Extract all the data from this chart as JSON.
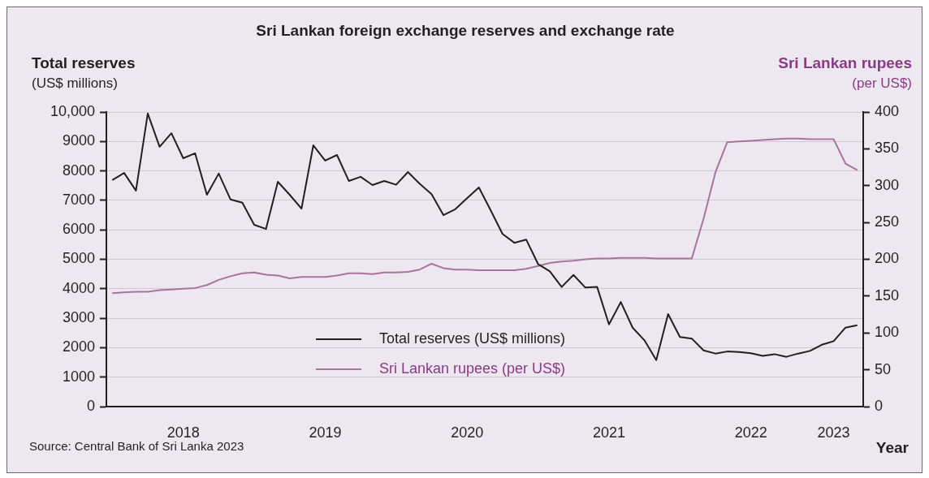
{
  "chart_data": {
    "type": "line",
    "title": "Sri Lankan foreign exchange reserves and exchange rate",
    "xlabel": "Year",
    "ylabel": "Total reserves\n(US$ millions)",
    "y2label": "Sri Lankan rupees\n(per US$)",
    "annotations": [
      "Source: Central Bank of Sri Lanka 2023"
    ],
    "categories": [
      null,
      null,
      null,
      null,
      null,
      null,
      "2018",
      null,
      null,
      null,
      null,
      null,
      null,
      null,
      null,
      null,
      null,
      null,
      "2019",
      null,
      null,
      null,
      null,
      null,
      null,
      null,
      null,
      null,
      null,
      null,
      "2020",
      null,
      null,
      null,
      null,
      null,
      null,
      null,
      null,
      null,
      null,
      null,
      "2021",
      null,
      null,
      null,
      null,
      null,
      null,
      null,
      null,
      null,
      null,
      null,
      "2022",
      null,
      null,
      null,
      null,
      null,
      null,
      "2023",
      null,
      null
    ],
    "series": [
      {
        "name": "Total reserves (US$ millions)",
        "color": "#231f20",
        "values": [
          7690,
          7930,
          7330,
          9950,
          8820,
          9280,
          8430,
          8600,
          7190,
          7910,
          7030,
          6920,
          6170,
          6030,
          7630,
          7190,
          6720,
          8870,
          8350,
          8540,
          7660,
          7800,
          7520,
          7660,
          7530,
          7960,
          7560,
          7210,
          6500,
          6700,
          7070,
          7440,
          6660,
          5860,
          5560,
          5670,
          4840,
          4590,
          4060,
          4470,
          4040,
          4060,
          2790,
          3550,
          2680,
          2250,
          1580,
          3140,
          2360,
          2310,
          1910,
          1800,
          1870,
          1850,
          1810,
          1720,
          1780,
          1690,
          1800,
          1890,
          2100,
          2220,
          2680,
          2760
        ]
      },
      {
        "name": "Sri Lankan rupees (per US$)",
        "color": "#a9739f",
        "axis": "y2",
        "values": [
          154,
          155,
          156,
          156,
          158,
          159,
          160,
          161,
          165,
          172,
          177,
          181,
          182,
          179,
          178,
          174,
          176,
          176,
          176,
          178,
          181,
          181,
          180,
          182,
          182,
          183,
          186,
          194,
          188,
          186,
          186,
          185,
          185,
          185,
          185,
          187,
          191,
          195,
          197,
          198,
          200,
          201,
          201,
          202,
          202,
          202,
          201,
          201,
          201,
          201,
          255,
          318,
          359,
          360,
          361,
          362,
          363,
          364,
          364,
          363,
          363,
          363,
          330,
          321
        ]
      }
    ],
    "ylim": [
      0,
      10000
    ],
    "yticks": [
      0,
      1000,
      2000,
      3000,
      4000,
      5000,
      6000,
      7000,
      8000,
      9000,
      {
        "value": 10000,
        "label": "10,000"
      }
    ],
    "y2lim": [
      0,
      400
    ],
    "y2ticks": [
      0,
      50,
      100,
      150,
      200,
      250,
      300,
      350,
      400
    ],
    "grid": "y",
    "legend": "bottom",
    "marker": "none",
    "line_style": "solid"
  }
}
